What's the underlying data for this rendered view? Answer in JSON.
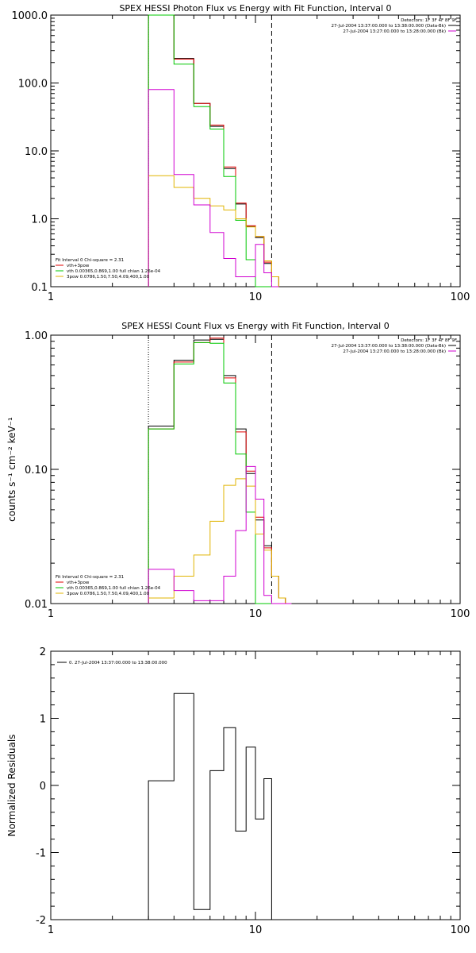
{
  "chart_data": [
    {
      "type": "line",
      "title": "SPEX HESSI Photon Flux vs Energy with Fit Function, Interval 0",
      "xlabel": "",
      "ylabel": "",
      "xscale": "log",
      "yscale": "log",
      "xlim": [
        1,
        100
      ],
      "ylim": [
        0.1,
        1000
      ],
      "xticks": [
        "1",
        "10",
        "100"
      ],
      "yticks": [
        "0.1",
        "1.0",
        "10.0",
        "100.0",
        "1000.0"
      ],
      "vlines": [
        {
          "x": 3,
          "style": "dotted"
        },
        {
          "x": 12,
          "style": "dashed"
        }
      ],
      "legend_top_right": {
        "detectors": "Detectors: 1F 3F 4F 8F 9F",
        "lines": [
          {
            "text": "27-Jul-2004 13:37:00.000 to 13:38:00.000 (Data-Bk)",
            "color": "#000000"
          },
          {
            "text": "27-Jul-2004 13:27:00.000 to 13:28:00.000 (Bk)",
            "color": "#d000d0"
          }
        ]
      },
      "legend_bottom_left": {
        "header": "Fit Interval 0   Chi-square = 2.31",
        "lines": [
          {
            "text": "vth+3pow",
            "color": "#e00000"
          },
          {
            "text": "vth 0.00365,0.869,1.00  full chian 1.26e-04",
            "color": "#00c800"
          },
          {
            "text": "3pow 0.0786,1.50,7.50,4.09,400,1.00",
            "color": "#e0b400"
          }
        ]
      },
      "bin_edges": [
        3,
        4,
        5,
        6,
        7,
        8,
        9,
        10,
        11,
        12,
        13
      ],
      "series": [
        {
          "color": "#000000",
          "values": [
            1000,
            230,
            50,
            23,
            5.5,
            1.65,
            0.77,
            0.53,
            0.22,
            0.14
          ]
        },
        {
          "color": "#e00000",
          "values": [
            1000,
            225,
            50,
            24,
            5.8,
            1.7,
            0.79,
            0.55,
            0.23,
            0.14
          ]
        },
        {
          "color": "#00c800",
          "values": [
            1000,
            190,
            45,
            21,
            4.2,
            0.95,
            0.25,
            0.1,
            0.1,
            0.1
          ]
        },
        {
          "color": "#e0b400",
          "values": [
            4.3,
            2.9,
            2.0,
            1.55,
            1.35,
            1.0,
            0.76,
            0.55,
            0.24,
            0.14
          ]
        },
        {
          "color": "#d000d0",
          "values": [
            80,
            4.5,
            1.6,
            0.63,
            0.26,
            0.14,
            0.14,
            0.42,
            0.16,
            0.1
          ]
        }
      ]
    },
    {
      "type": "line",
      "title": "SPEX HESSI Count Flux vs Energy with Fit Function, Interval 0",
      "xlabel": "",
      "ylabel": "counts s⁻¹ cm⁻² keV⁻¹",
      "xscale": "log",
      "yscale": "log",
      "xlim": [
        1,
        100
      ],
      "ylim": [
        0.01,
        1.0
      ],
      "xticks": [
        "1",
        "10",
        "100"
      ],
      "yticks": [
        "0.01",
        "0.10",
        "1.00"
      ],
      "vlines": [
        {
          "x": 3,
          "style": "dotted"
        },
        {
          "x": 12,
          "style": "dashed"
        }
      ],
      "legend_top_right": {
        "detectors": "Detectors: 1F 3F 4F 8F 9F",
        "lines": [
          {
            "text": "27-Jul-2004 13:37:00.000 to 13:38:00.000 (Data-Bk)",
            "color": "#000000"
          },
          {
            "text": "27-Jul-2004 13:27:00.000 to 13:28:00.000 (Bk)",
            "color": "#d000d0"
          }
        ]
      },
      "legend_bottom_left": {
        "header": "Fit Interval 0   Chi-square = 2.31",
        "lines": [
          {
            "text": "vth+3pow",
            "color": "#e00000"
          },
          {
            "text": "vth 0.00365,0.869,1.00  full chian 1.26e-04",
            "color": "#00c800"
          },
          {
            "text": "3pow 0.0786,1.50,7.50,4.09,400,1.00",
            "color": "#e0b400"
          }
        ]
      },
      "bin_edges": [
        3,
        4,
        5,
        6,
        7,
        8,
        9,
        10,
        11,
        12,
        13,
        14,
        15
      ],
      "series": [
        {
          "color": "#000000",
          "values": [
            0.21,
            0.65,
            0.92,
            0.93,
            0.5,
            0.2,
            0.093,
            0.042,
            0.027,
            0.016,
            0.011,
            0.01
          ]
        },
        {
          "color": "#e00000",
          "values": [
            0.2,
            0.63,
            0.88,
            0.95,
            0.48,
            0.19,
            0.097,
            0.044,
            0.026,
            0.016,
            0.011,
            0.01
          ]
        },
        {
          "color": "#00c800",
          "values": [
            0.2,
            0.61,
            0.88,
            0.87,
            0.44,
            0.13,
            0.048,
            0.01,
            0.01,
            0.01,
            0.01,
            0.01
          ]
        },
        {
          "color": "#e0b400",
          "values": [
            0.011,
            0.016,
            0.023,
            0.041,
            0.076,
            0.085,
            0.075,
            0.033,
            0.025,
            0.016,
            0.011,
            0.01
          ]
        },
        {
          "color": "#d000d0",
          "values": [
            0.018,
            0.0125,
            0.0105,
            0.0105,
            0.016,
            0.035,
            0.105,
            0.06,
            0.0115,
            0.01,
            0.01,
            0.01
          ]
        }
      ]
    },
    {
      "type": "line",
      "title": "",
      "xlabel": "",
      "ylabel": "Normalized Residuals",
      "xscale": "log",
      "yscale": "linear",
      "xlim": [
        1,
        100
      ],
      "ylim": [
        -2,
        2
      ],
      "xticks": [
        "1",
        "10",
        "100"
      ],
      "yticks": [
        "-2",
        "-1",
        "0",
        "1",
        "2"
      ],
      "legend_top_left": {
        "lines": [
          {
            "text": "0. 27-Jul-2004 13:37:00.000 to 13:38:00.000",
            "color": "#000000"
          }
        ]
      },
      "bin_edges": [
        3,
        4,
        5,
        6,
        7,
        8,
        9,
        10,
        11,
        12
      ],
      "series": [
        {
          "color": "#000000",
          "values": [
            0.07,
            1.37,
            -1.85,
            0.22,
            0.86,
            -0.68,
            0.57,
            -0.5,
            0.1
          ]
        }
      ]
    }
  ]
}
